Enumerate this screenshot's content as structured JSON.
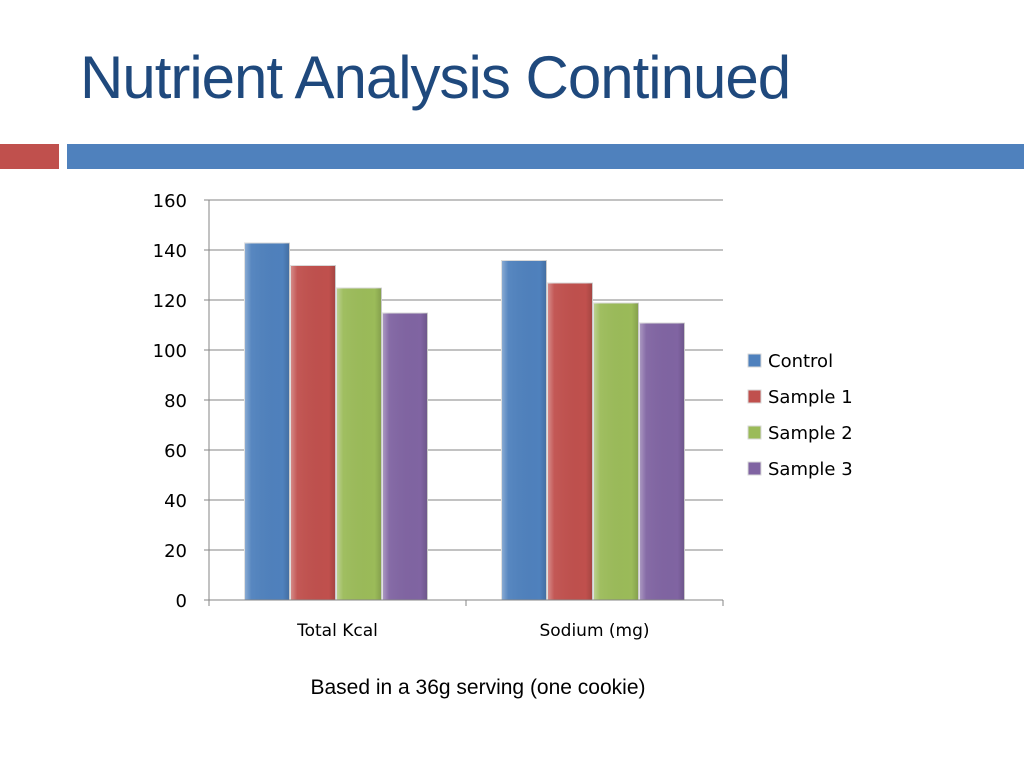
{
  "slide": {
    "title": "Nutrient Analysis Continued",
    "title_color": "#1F497D",
    "accent_left_color": "#C0504D",
    "accent_right_color": "#4F81BD",
    "footnote": "Based in a 36g serving (one cookie)"
  },
  "chart_data": {
    "type": "bar",
    "title": "",
    "xlabel": "",
    "ylabel": "",
    "categories": [
      "Total Kcal",
      "Sodium (mg)"
    ],
    "series": [
      {
        "name": "Control",
        "values": [
          143,
          136
        ],
        "color": "#4F81BD"
      },
      {
        "name": "Sample 1",
        "values": [
          134,
          127
        ],
        "color": "#C0504D"
      },
      {
        "name": "Sample 2",
        "values": [
          125,
          119
        ],
        "color": "#9BBB59"
      },
      {
        "name": "Sample 3",
        "values": [
          115,
          111
        ],
        "color": "#8064A2"
      }
    ],
    "ylim": [
      0,
      160
    ],
    "yticks": [
      "0",
      "20",
      "40",
      "60",
      "80",
      "100",
      "120",
      "140",
      "160"
    ],
    "grid": true,
    "legend_position": "right"
  }
}
